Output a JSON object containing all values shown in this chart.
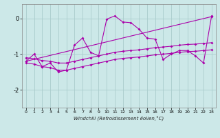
{
  "xlabel": "Windchill (Refroidissement éolien,°C)",
  "xlim": [
    -0.5,
    23.5
  ],
  "ylim": [
    -2.5,
    0.4
  ],
  "yticks": [
    -2,
    -1,
    0
  ],
  "xticks": [
    0,
    1,
    2,
    3,
    4,
    5,
    6,
    7,
    8,
    9,
    10,
    11,
    12,
    13,
    14,
    15,
    16,
    17,
    18,
    19,
    20,
    21,
    22,
    23
  ],
  "background_color": "#cce8e8",
  "line_color": "#aa00aa",
  "grid_color": "#aacccc",
  "line1_x": [
    0,
    1,
    2,
    3,
    4,
    5,
    6,
    7,
    8,
    9,
    10,
    11,
    12,
    13,
    14,
    15,
    16,
    17,
    18,
    19,
    20,
    21,
    22,
    23
  ],
  "line1_y": [
    -1.25,
    -1.28,
    -1.35,
    -1.38,
    -1.45,
    -1.45,
    -1.4,
    -1.35,
    -1.3,
    -1.25,
    -1.2,
    -1.15,
    -1.12,
    -1.1,
    -1.08,
    -1.05,
    -1.02,
    -1.0,
    -0.98,
    -0.95,
    -0.93,
    -0.92,
    -0.9,
    -0.88
  ],
  "line2_x": [
    0,
    1,
    2,
    3,
    4,
    5,
    6,
    7,
    8,
    9,
    10,
    11,
    12,
    13,
    14,
    15,
    16,
    17,
    18,
    19,
    20,
    21,
    22,
    23
  ],
  "line2_y": [
    -1.1,
    -1.13,
    -1.18,
    -1.2,
    -1.25,
    -1.25,
    -1.2,
    -1.15,
    -1.1,
    -1.05,
    -1.0,
    -0.95,
    -0.92,
    -0.9,
    -0.88,
    -0.85,
    -0.82,
    -0.8,
    -0.78,
    -0.75,
    -0.73,
    -0.72,
    -0.7,
    -0.68
  ],
  "line3_x": [
    0,
    23
  ],
  "line3_y": [
    -1.2,
    0.05
  ],
  "line4_x": [
    0,
    1,
    2,
    3,
    4,
    5,
    6,
    7,
    8,
    9,
    10,
    11,
    12,
    13,
    14,
    15,
    16,
    17,
    18,
    19,
    20,
    21,
    22,
    23
  ],
  "line4_y": [
    -1.2,
    -1.0,
    -1.35,
    -1.25,
    -1.5,
    -1.45,
    -0.75,
    -0.55,
    -0.95,
    -1.05,
    -0.02,
    0.07,
    -0.1,
    -0.12,
    -0.3,
    -0.55,
    -0.58,
    -1.15,
    -1.0,
    -0.9,
    -0.9,
    -1.05,
    -1.25,
    0.07
  ]
}
